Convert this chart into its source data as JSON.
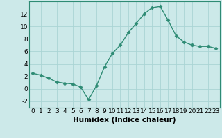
{
  "x": [
    0,
    1,
    2,
    3,
    4,
    5,
    6,
    7,
    8,
    9,
    10,
    11,
    12,
    13,
    14,
    15,
    16,
    17,
    18,
    19,
    20,
    21,
    22,
    23
  ],
  "y": [
    2.5,
    2.2,
    1.7,
    1.1,
    0.9,
    0.8,
    0.3,
    -1.7,
    0.5,
    3.5,
    5.7,
    7.0,
    9.0,
    10.5,
    12.0,
    13.0,
    13.2,
    11.0,
    8.5,
    7.5,
    7.0,
    6.8,
    6.8,
    6.5
  ],
  "line_color": "#2e8b74",
  "marker": "D",
  "marker_size": 2.5,
  "bg_color": "#cce9e9",
  "grid_color": "#aad4d4",
  "xlabel": "Humidex (Indice chaleur)",
  "xlim": [
    -0.5,
    23.5
  ],
  "ylim": [
    -3,
    14
  ],
  "yticks": [
    -2,
    0,
    2,
    4,
    6,
    8,
    10,
    12
  ],
  "xticks": [
    0,
    1,
    2,
    3,
    4,
    5,
    6,
    7,
    8,
    9,
    10,
    11,
    12,
    13,
    14,
    15,
    16,
    17,
    18,
    19,
    20,
    21,
    22,
    23
  ],
  "tick_label_fontsize": 6.5,
  "xlabel_fontsize": 7.5,
  "spine_color": "#2e8b74"
}
